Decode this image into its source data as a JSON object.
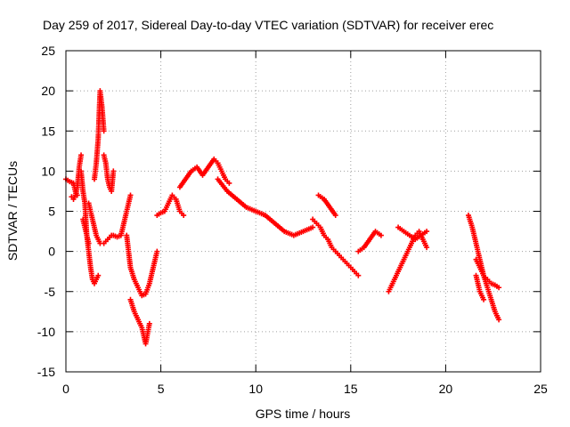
{
  "chart_data": {
    "type": "scatter",
    "title": "Day 259 of 2017, Sidereal Day-to-day VTEC variation (SDTVAR) for receiver erec",
    "xlabel": "GPS time / hours",
    "ylabel": "SDTVAR / TECUs",
    "xlim": [
      0,
      25
    ],
    "ylim": [
      -15,
      25
    ],
    "x_ticks": [
      0,
      5,
      10,
      15,
      20,
      25
    ],
    "y_ticks": [
      -15,
      -10,
      -5,
      0,
      5,
      10,
      15,
      20,
      25
    ],
    "grid": true,
    "marker": "+",
    "color": "#ff0000",
    "series": [
      {
        "name": "s1",
        "x": [
          0.0,
          0.2,
          0.4,
          0.5,
          0.6
        ],
        "y": [
          9.0,
          8.7,
          8.5,
          7.5,
          7.0
        ]
      },
      {
        "name": "s2",
        "x": [
          0.3,
          0.4,
          0.5,
          0.6,
          0.7,
          0.8
        ],
        "y": [
          6.8,
          6.5,
          7.0,
          8.0,
          10.5,
          12.0
        ]
      },
      {
        "name": "s3",
        "x": [
          0.8,
          0.9,
          1.0,
          1.05,
          1.1,
          1.2
        ],
        "y": [
          10.0,
          7.5,
          6.0,
          4.0,
          2.0,
          1.0
        ]
      },
      {
        "name": "s4",
        "x": [
          0.9,
          1.0,
          1.1,
          1.2,
          1.3,
          1.4,
          1.5,
          1.6,
          1.7
        ],
        "y": [
          4.0,
          3.0,
          2.0,
          0.0,
          -2.0,
          -3.5,
          -4.0,
          -3.5,
          -3.0
        ]
      },
      {
        "name": "s5",
        "x": [
          1.5,
          1.6,
          1.7,
          1.8,
          1.9,
          2.0
        ],
        "y": [
          9.0,
          11.0,
          14.0,
          20.0,
          18.0,
          15.0
        ]
      },
      {
        "name": "s6",
        "x": [
          1.2,
          1.4,
          1.6,
          1.8,
          2.0,
          2.2,
          2.4
        ],
        "y": [
          6.0,
          4.0,
          2.0,
          1.0,
          1.0,
          1.5,
          2.0
        ]
      },
      {
        "name": "s7",
        "x": [
          2.0,
          2.1,
          2.2,
          2.3,
          2.4,
          2.5
        ],
        "y": [
          12.0,
          11.0,
          9.0,
          8.0,
          7.5,
          10.0
        ]
      },
      {
        "name": "s8",
        "x": [
          2.5,
          2.7,
          2.9,
          3.0,
          3.2,
          3.4
        ],
        "y": [
          2.0,
          1.8,
          2.0,
          3.0,
          5.0,
          7.0
        ]
      },
      {
        "name": "s9",
        "x": [
          3.2,
          3.3,
          3.4,
          3.6,
          3.8,
          4.0,
          4.2,
          4.4,
          4.6,
          4.8
        ],
        "y": [
          2.0,
          0.0,
          -2.0,
          -3.5,
          -4.5,
          -5.5,
          -5.3,
          -4.0,
          -2.0,
          0.0
        ]
      },
      {
        "name": "s10",
        "x": [
          3.4,
          3.6,
          3.8,
          4.0,
          4.2,
          4.4
        ],
        "y": [
          -6.0,
          -7.5,
          -8.5,
          -9.5,
          -11.5,
          -9.0
        ]
      },
      {
        "name": "s11",
        "x": [
          4.8,
          5.0,
          5.2,
          5.4,
          5.6,
          5.8,
          6.0,
          6.2
        ],
        "y": [
          4.5,
          4.8,
          5.0,
          6.0,
          7.0,
          6.5,
          5.0,
          4.5
        ]
      },
      {
        "name": "s12",
        "x": [
          6.0,
          6.3,
          6.6,
          6.9,
          7.2,
          7.5,
          7.8,
          8.0,
          8.2,
          8.4,
          8.6
        ],
        "y": [
          8.0,
          9.0,
          10.0,
          10.5,
          9.5,
          10.5,
          11.5,
          11.0,
          10.0,
          9.0,
          8.5
        ]
      },
      {
        "name": "s13",
        "x": [
          8.0,
          8.5,
          9.0,
          9.5,
          10.0,
          10.5,
          11.0,
          11.5,
          12.0,
          12.5,
          13.0
        ],
        "y": [
          9.0,
          7.5,
          6.5,
          5.5,
          5.0,
          4.5,
          3.5,
          2.5,
          2.0,
          2.5,
          3.0
        ]
      },
      {
        "name": "s14",
        "x": [
          13.0,
          13.2,
          13.4,
          13.6,
          13.8,
          14.0,
          14.2
        ],
        "y": [
          4.0,
          3.5,
          3.0,
          2.0,
          1.5,
          0.5,
          0.0
        ]
      },
      {
        "name": "s15",
        "x": [
          13.3,
          13.6,
          13.9,
          14.2
        ],
        "y": [
          7.0,
          6.5,
          5.5,
          4.5
        ]
      },
      {
        "name": "s16",
        "x": [
          14.2,
          14.4,
          14.6,
          14.8,
          15.0,
          15.2,
          15.4
        ],
        "y": [
          0.0,
          -0.5,
          -1.0,
          -1.5,
          -2.0,
          -2.5,
          -3.0
        ]
      },
      {
        "name": "s17",
        "x": [
          15.4,
          15.7,
          16.0,
          16.3,
          16.6
        ],
        "y": [
          0.0,
          0.5,
          1.5,
          2.5,
          2.0
        ]
      },
      {
        "name": "s18",
        "x": [
          17.0,
          17.2,
          17.4,
          17.6,
          17.8,
          18.0,
          18.2,
          18.4,
          18.6,
          18.8,
          19.0
        ],
        "y": [
          -5.0,
          -4.0,
          -3.0,
          -2.0,
          -1.0,
          0.0,
          1.0,
          2.0,
          2.5,
          1.5,
          0.5
        ]
      },
      {
        "name": "s19",
        "x": [
          17.5,
          17.8,
          18.1,
          18.4,
          18.7,
          19.0
        ],
        "y": [
          3.0,
          2.5,
          2.0,
          1.5,
          2.0,
          2.5
        ]
      },
      {
        "name": "s20",
        "x": [
          21.2,
          21.4,
          21.6,
          21.8,
          22.0,
          22.2,
          22.4,
          22.6,
          22.8
        ],
        "y": [
          4.5,
          3.0,
          1.0,
          -1.0,
          -3.0,
          -4.5,
          -6.0,
          -7.5,
          -8.5
        ]
      },
      {
        "name": "s21",
        "x": [
          21.6,
          21.8,
          22.0,
          22.2,
          22.4,
          22.6,
          22.8
        ],
        "y": [
          -1.0,
          -2.0,
          -3.0,
          -3.5,
          -4.0,
          -4.2,
          -4.5
        ]
      },
      {
        "name": "s22",
        "x": [
          21.6,
          21.8,
          22.0
        ],
        "y": [
          -3.0,
          -5.0,
          -6.0
        ]
      }
    ]
  }
}
